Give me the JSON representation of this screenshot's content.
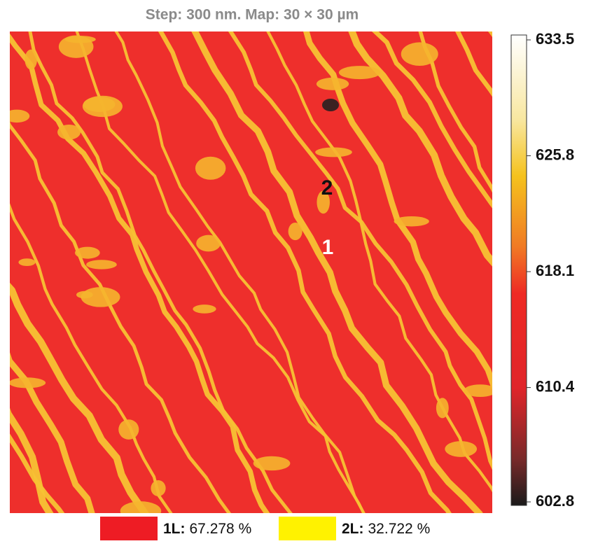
{
  "title": "Step: 300 nm. Map: 30 × 30 µm",
  "colorbar": {
    "ticks": [
      633.5,
      625.8,
      618.1,
      610.4,
      602.8
    ]
  },
  "annotations": [
    "2",
    "1"
  ],
  "legend": [
    {
      "label": "1L:",
      "text": "67.278 %",
      "color": "#ee1c24"
    },
    {
      "label": "2L:",
      "text": "32.722 %",
      "color": "#fff200"
    }
  ]
}
